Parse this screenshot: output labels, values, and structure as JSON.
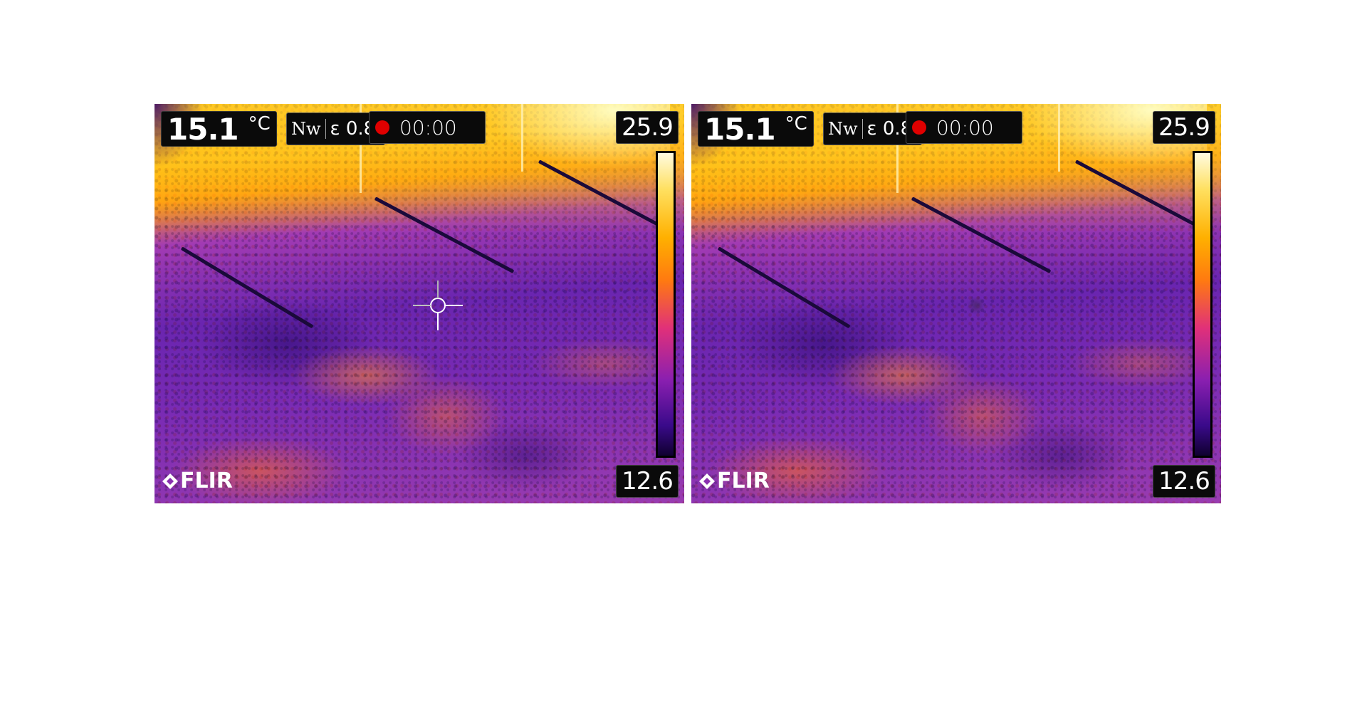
{
  "panels": [
    {
      "id": "left",
      "spot_temperature": "15.1",
      "unit": "°C",
      "mode_icon": "Nw",
      "emissivity": "ε 0.8",
      "recording_time": "00:00",
      "scale_max": "25.9",
      "scale_min": "12.6",
      "brand": "FLIR",
      "crosshair_visible": true
    },
    {
      "id": "right",
      "spot_temperature": "15.1",
      "unit": "°C",
      "mode_icon": "Nw",
      "emissivity": "ε 0.8",
      "recording_time": "00:00",
      "scale_max": "25.9",
      "scale_min": "12.6",
      "brand": "FLIR",
      "crosshair_visible": false
    }
  ],
  "colors": {
    "palette": "iron",
    "record_indicator": "#e00000",
    "overlay_background": "#0a0a0a",
    "overlay_text": "#ffffff"
  },
  "icons": {
    "record": "record-dot-icon",
    "crosshair": "crosshair-icon",
    "brand_mark": "flir-diamond-icon"
  }
}
